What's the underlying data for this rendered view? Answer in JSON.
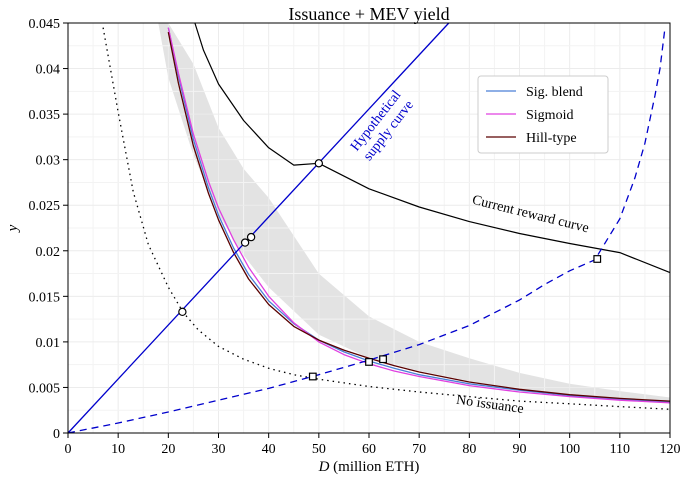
{
  "chart_data": {
    "type": "line",
    "title": "Issuance + MEV yield",
    "xlabel": "D",
    "xlabel_unit": " (million ETH)",
    "ylabel": "y",
    "xlim": [
      0,
      120
    ],
    "ylim": [
      0,
      0.045
    ],
    "xticks": [
      0,
      10,
      20,
      30,
      40,
      50,
      60,
      70,
      80,
      90,
      100,
      110,
      120
    ],
    "yticks": [
      0,
      0.005,
      0.01,
      0.015,
      0.02,
      0.025,
      0.03,
      0.035,
      0.04,
      0.045
    ],
    "ytick_labels": [
      "0",
      "0.005",
      "0.01",
      "0.015",
      "0.02",
      "0.025",
      "0.03",
      "0.035",
      "0.04",
      "0.045"
    ],
    "grid": true,
    "legend_position": "top-right",
    "colors": {
      "sig_blend": "#4a7fd6",
      "sigmoid": "#e040e0",
      "hill": "#5a0000",
      "supply": "#0000cc",
      "current": "#000000",
      "band": "#e3e3e3"
    },
    "series": [
      {
        "name": "Sig. blend",
        "role": "legend",
        "color": "#4a7fd6",
        "x": [
          20,
          22,
          25,
          28,
          30,
          33,
          36,
          40,
          45,
          50,
          55,
          60,
          65,
          70,
          80,
          90,
          100,
          110,
          120
        ],
        "y": [
          0.0445,
          0.0392,
          0.0322,
          0.0269,
          0.0239,
          0.0203,
          0.0174,
          0.0145,
          0.012,
          0.0102,
          0.0089,
          0.0079,
          0.0071,
          0.0064,
          0.0054,
          0.0047,
          0.0041,
          0.0037,
          0.0034
        ]
      },
      {
        "name": "Sigmoid",
        "role": "legend",
        "color": "#e040e0",
        "x": [
          20,
          22,
          25,
          28,
          30,
          33,
          36,
          40,
          45,
          50,
          55,
          60,
          65,
          70,
          80,
          90,
          100,
          110,
          120
        ],
        "y": [
          0.0445,
          0.0395,
          0.0328,
          0.0276,
          0.0247,
          0.0212,
          0.0182,
          0.015,
          0.0121,
          0.01,
          0.0086,
          0.0076,
          0.0068,
          0.0062,
          0.0052,
          0.0045,
          0.004,
          0.0036,
          0.0033
        ]
      },
      {
        "name": "Hill-type",
        "role": "legend",
        "color": "#5a0000",
        "x": [
          20,
          22,
          25,
          28,
          30,
          33,
          36,
          40,
          45,
          50,
          55,
          60,
          65,
          70,
          80,
          90,
          100,
          110,
          120
        ],
        "y": [
          0.044,
          0.0384,
          0.0315,
          0.0263,
          0.0234,
          0.0198,
          0.0169,
          0.0141,
          0.0117,
          0.0102,
          0.0091,
          0.0082,
          0.0074,
          0.0067,
          0.0056,
          0.0048,
          0.0042,
          0.0038,
          0.0035
        ]
      },
      {
        "name": "Hypothetical supply curve",
        "role": "supply",
        "color": "#0000cc",
        "x": [
          0,
          75.9
        ],
        "y": [
          0,
          0.045
        ]
      },
      {
        "name": "Current reward curve",
        "role": "current",
        "color": "#000000",
        "x": [
          25.3,
          27,
          30,
          35,
          40,
          45,
          50,
          60,
          70,
          80,
          90,
          100,
          110,
          120
        ],
        "y": [
          0.045,
          0.042,
          0.0383,
          0.0343,
          0.0313,
          0.0294,
          0.0296,
          0.0268,
          0.0248,
          0.0232,
          0.0219,
          0.0208,
          0.0198,
          0.0176
        ]
      },
      {
        "name": "No issuance",
        "role": "no-issuance",
        "color": "#000000",
        "x": [
          7,
          10,
          13,
          16,
          20,
          23,
          26,
          30,
          35,
          40,
          45,
          50,
          60,
          70,
          80,
          90,
          100,
          110,
          120
        ],
        "y": [
          0.0445,
          0.0352,
          0.0265,
          0.0207,
          0.016,
          0.0132,
          0.0113,
          0.0095,
          0.0081,
          0.0071,
          0.0064,
          0.0059,
          0.0051,
          0.0045,
          0.004,
          0.0035,
          0.0032,
          0.0029,
          0.0026
        ]
      },
      {
        "name": "MEV-adjusted supply curve",
        "role": "mev-supply",
        "color": "#0000cc",
        "x": [
          0,
          10,
          20,
          30,
          40,
          50,
          60,
          70,
          80,
          90,
          95,
          100,
          105,
          110,
          113,
          115,
          117,
          118,
          119
        ],
        "y": [
          0,
          0.0011,
          0.0023,
          0.0036,
          0.0049,
          0.0064,
          0.008,
          0.0097,
          0.0118,
          0.0146,
          0.0163,
          0.0178,
          0.019,
          0.0235,
          0.028,
          0.0318,
          0.037,
          0.04,
          0.0445
        ]
      }
    ],
    "band": {
      "name": "range",
      "x": [
        18,
        20,
        25,
        30,
        35,
        40,
        50,
        60,
        70,
        80,
        90,
        100,
        110,
        120
      ],
      "upper": [
        0.045,
        0.045,
        0.0405,
        0.0335,
        0.029,
        0.0258,
        0.0175,
        0.0128,
        0.01,
        0.0082,
        0.0066,
        0.0054,
        0.0046,
        0.0039
      ],
      "lower": [
        0.045,
        0.039,
        0.0305,
        0.024,
        0.0195,
        0.016,
        0.0108,
        0.0082,
        0.0068,
        0.0057,
        0.0048,
        0.0042,
        0.0038,
        0.0034
      ]
    },
    "points": [
      {
        "name": "supply-current",
        "shape": "circle",
        "x": 50.0,
        "y": 0.0296
      },
      {
        "name": "supply-hill",
        "shape": "circle",
        "x": 35.3,
        "y": 0.0209
      },
      {
        "name": "supply-sigmoid",
        "shape": "circle",
        "x": 36.5,
        "y": 0.0215
      },
      {
        "name": "supply-noissuance",
        "shape": "circle",
        "x": 22.8,
        "y": 0.0133
      },
      {
        "name": "mev-noissuance",
        "shape": "square",
        "x": 48.8,
        "y": 0.0062
      },
      {
        "name": "mev-sigmoid",
        "shape": "square",
        "x": 60.0,
        "y": 0.0078
      },
      {
        "name": "mev-hill",
        "shape": "square",
        "x": 62.8,
        "y": 0.0081
      },
      {
        "name": "mev-current",
        "shape": "square",
        "x": 105.5,
        "y": 0.0191
      }
    ],
    "annotations": [
      {
        "line1": "Hypothetical",
        "line2": "supply curve",
        "x": 62,
        "y": 0.034,
        "angle": -52,
        "color": "#0000cc"
      },
      {
        "text": "Current reward curve",
        "x": 92,
        "y": 0.0236,
        "angle": 14,
        "color": "#000000"
      },
      {
        "text": "No issuance",
        "x": 84,
        "y": 0.0027,
        "angle": 8,
        "color": "#000000"
      }
    ]
  }
}
